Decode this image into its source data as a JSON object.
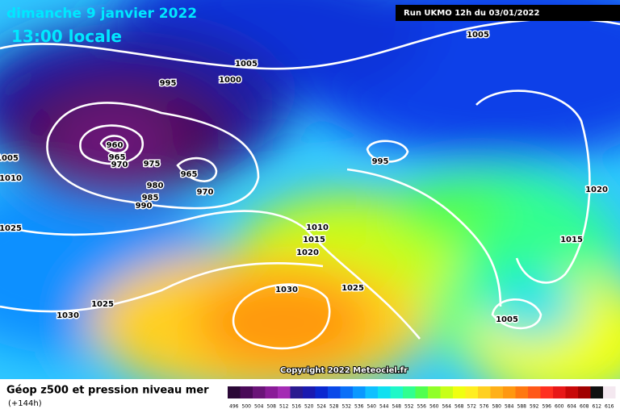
{
  "header": {
    "date": "dimanche 9 janvier 2022",
    "time": "13:00 locale",
    "run": "Run UKMO 12h du 03/01/2022"
  },
  "isobar_labels": [
    "1005",
    "1005",
    "995",
    "1000",
    "960",
    "965",
    "970",
    "975",
    "965",
    "970",
    "980",
    "985",
    "990",
    "1005",
    "1010",
    "1025",
    "995",
    "1020",
    "1010",
    "1015",
    "1020",
    "1015",
    "1030",
    "1025",
    "1025",
    "1030",
    "1005"
  ],
  "copyright": "Copyright 2022 Meteociel.fr",
  "legend": {
    "title": "Géop z500 et pression niveau mer",
    "lead": "(+144h)",
    "values": [
      "496",
      "500",
      "504",
      "508",
      "512",
      "516",
      "520",
      "524",
      "528",
      "532",
      "536",
      "540",
      "544",
      "548",
      "552",
      "556",
      "560",
      "564",
      "568",
      "572",
      "576",
      "580",
      "584",
      "588",
      "592",
      "596",
      "600",
      "604",
      "608",
      "612",
      "616"
    ],
    "colors": [
      "#2a0836",
      "#4a0a58",
      "#6a1478",
      "#8a1c98",
      "#a42cb4",
      "#2a1a90",
      "#1a1ab0",
      "#0a28d0",
      "#0a48e8",
      "#0a70f8",
      "#0a98ff",
      "#10c0ff",
      "#10e0f0",
      "#20f8c8",
      "#30ff90",
      "#50ff50",
      "#90ff28",
      "#c8ff18",
      "#f0ff10",
      "#ffee20",
      "#ffd020",
      "#ffb018",
      "#ff9810",
      "#ff7810",
      "#ff5818",
      "#ff3020",
      "#e81818",
      "#c80808",
      "#a00000",
      "#101010",
      "#f4e8f0"
    ]
  }
}
